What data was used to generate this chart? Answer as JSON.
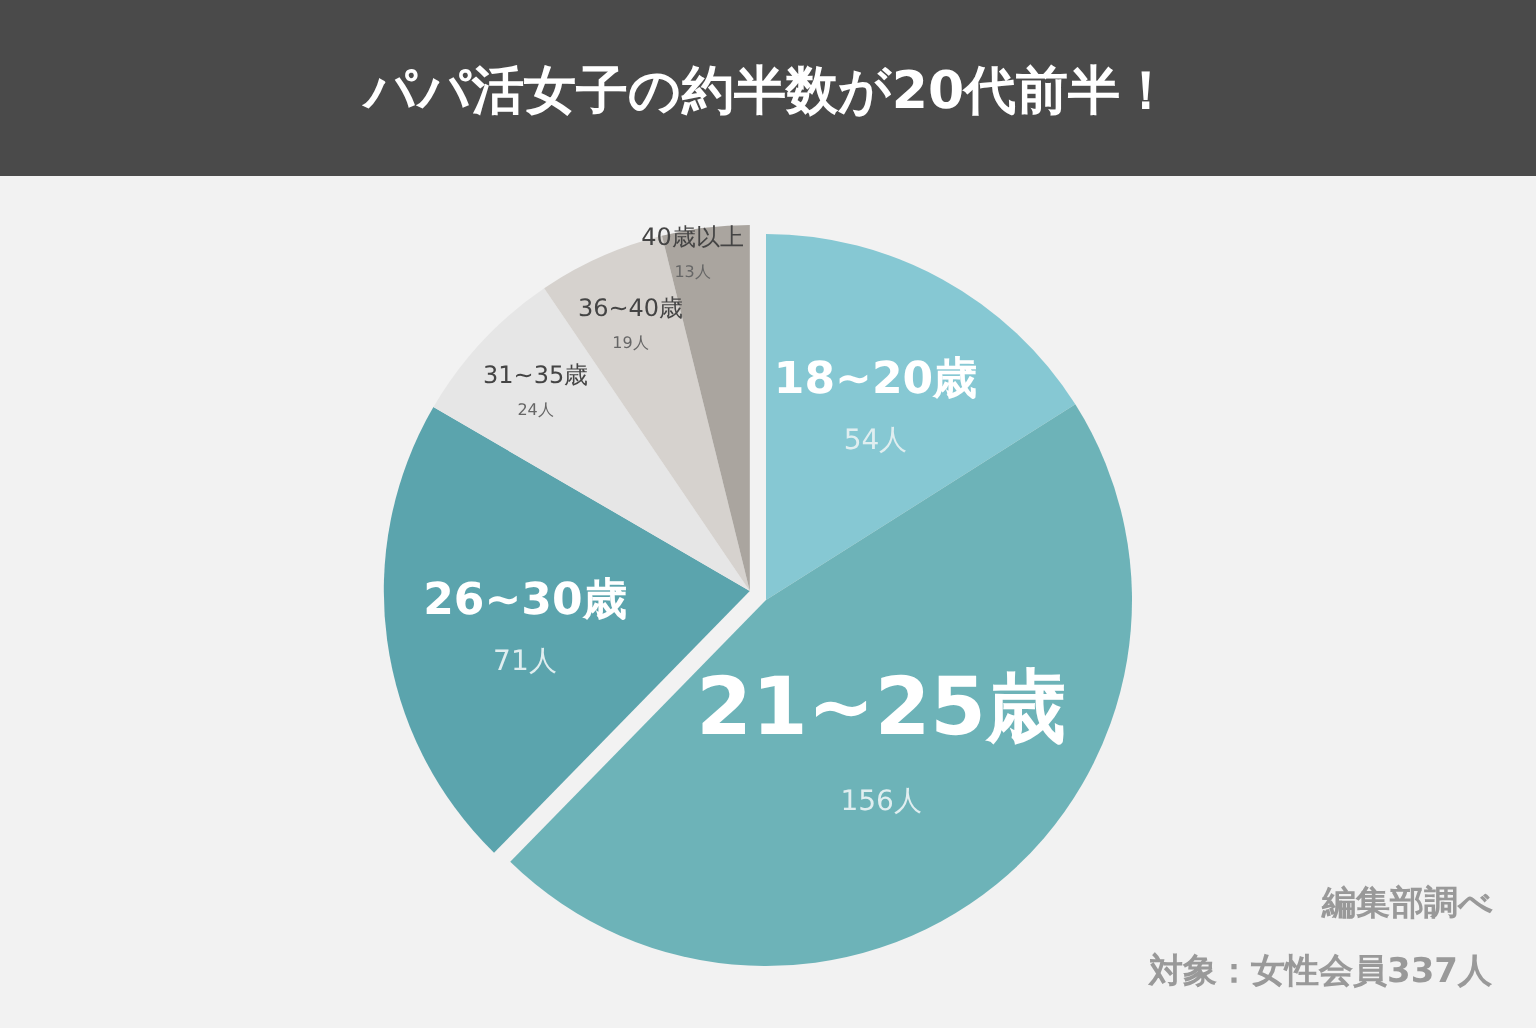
{
  "chart_data": {
    "type": "pie",
    "title": "パパ活女子の約半数が20代前半！",
    "categories": [
      "18~20歳",
      "21~25歳",
      "26~30歳",
      "31~35歳",
      "36~40歳",
      "40歳以上"
    ],
    "values": [
      54,
      156,
      71,
      24,
      19,
      13
    ],
    "value_labels": [
      "54人",
      "156人",
      "71人",
      "24人",
      "19人",
      "13人"
    ],
    "colors": [
      "#86c8d3",
      "#6db3b8",
      "#5ba4ad",
      "#e6e6e6",
      "#d6d2ce",
      "#aaa59f"
    ],
    "annotations": [
      "編集部調べ",
      "対象：女性会員337人"
    ]
  }
}
